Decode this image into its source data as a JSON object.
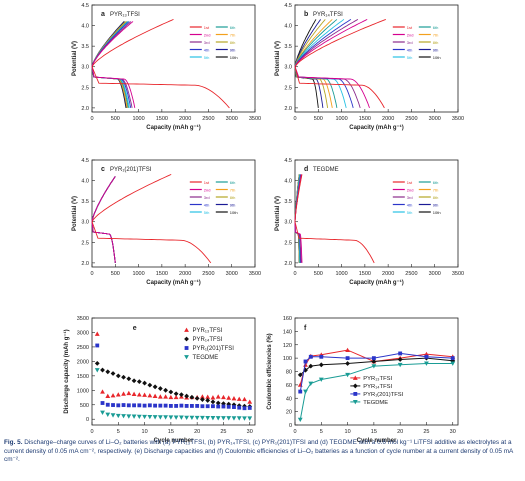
{
  "colors": {
    "red": "#e8262b",
    "darkred": "#c41e1e",
    "magenta": "#d5008f",
    "purple": "#8c2b8c",
    "blue": "#2b35c9",
    "cyan": "#28c2e4",
    "teal": "#1a9c95",
    "orange": "#f3a01d",
    "olive": "#b5a626",
    "black": "#111111",
    "navy": "#1b1b96",
    "darkblue": "#22229e"
  },
  "caption": {
    "prefix": "Fig. 5.",
    "text": "Discharge–charge curves of Li–O₂ batteries with (a) PYR₁₃TFSI, (b) PYR₁₄TFSI, (c) PYR₁(201)TFSI and (d) TEGDME with a 0.6 mol kg⁻¹ LiTFSI additive as electrolytes at a current density of 0.05 mA cm⁻², respectively. (e) Discharge capacities and (f) Coulombic efficiencies of Li–O₂ batteries as a function of cycle number at a current density of 0.05 mA cm⁻²."
  },
  "chart_data": [
    {
      "panel": "a",
      "type": "line",
      "label": "PYR₁₃TFSI",
      "xlabel": "Capacity (mAh g⁻¹)",
      "ylabel": "Potential (V)",
      "xlim": [
        0,
        3500
      ],
      "ylim": [
        1.9,
        4.5
      ],
      "xticks": [
        0,
        500,
        1000,
        1500,
        2000,
        2500,
        3000,
        3500
      ],
      "yticks": [
        2.0,
        2.5,
        3.0,
        3.5,
        4.0,
        4.5
      ],
      "legend": [
        "1st",
        "2nd",
        "3rd",
        "4th",
        "5th",
        "6th",
        "7th",
        "8th",
        "9th",
        "10th"
      ],
      "discharge_end": [
        2950,
        920,
        860,
        830,
        800,
        780,
        760,
        750,
        740,
        730
      ],
      "charge_end": [
        1750,
        880,
        840,
        800,
        780,
        760,
        740,
        720,
        700,
        690
      ],
      "charge_max": [
        4.15,
        4.1,
        4.1,
        4.1,
        4.1,
        4.1,
        4.1,
        4.1,
        4.1,
        4.1
      ]
    },
    {
      "panel": "b",
      "type": "line",
      "label": "PYR₁₄TFSI",
      "xlabel": "Capacity (mAh g⁻¹)",
      "ylabel": "Potential (V)",
      "xlim": [
        0,
        3500
      ],
      "ylim": [
        1.9,
        4.5
      ],
      "xticks": [
        0,
        500,
        1000,
        1500,
        2000,
        2500,
        3000,
        3500
      ],
      "yticks": [
        2.0,
        2.5,
        3.0,
        3.5,
        4.0,
        4.5
      ],
      "legend": [
        "1st",
        "2nd",
        "3rd",
        "4th",
        "5th",
        "6th",
        "7th",
        "8th",
        "9th",
        "10th"
      ],
      "discharge_end": [
        1920,
        1600,
        1400,
        1250,
        1100,
        900,
        800,
        700,
        600,
        500
      ],
      "charge_end": [
        1950,
        1550,
        1350,
        1200,
        1050,
        900,
        800,
        650,
        550,
        450
      ],
      "charge_max": [
        4.15,
        4.15,
        4.15,
        4.15,
        4.15,
        4.15,
        4.15,
        4.15,
        4.15,
        4.15
      ]
    },
    {
      "panel": "c",
      "type": "line",
      "label": "PYR₁(201)TFSI",
      "xlabel": "Capacity (mAh g⁻¹)",
      "ylabel": "Potential (V)",
      "xlim": [
        0,
        3500
      ],
      "ylim": [
        1.9,
        4.5
      ],
      "xticks": [
        0,
        500,
        1000,
        1500,
        2000,
        2500,
        3000,
        3500
      ],
      "yticks": [
        2.0,
        2.5,
        3.0,
        3.5,
        4.0,
        4.5
      ],
      "legend": [
        "1st",
        "2nd",
        "3rd",
        "4th",
        "5th",
        "6th",
        "7th",
        "8th",
        "9th",
        "10th"
      ],
      "discharge_end": [
        2550,
        500,
        500,
        500,
        500,
        500,
        500,
        500,
        500,
        500
      ],
      "charge_end": [
        1700,
        500,
        500,
        500,
        500,
        500,
        500,
        500,
        500,
        500
      ],
      "charge_max": [
        4.15,
        4.1,
        4.1,
        4.1,
        4.1,
        4.1,
        4.1,
        4.1,
        4.1,
        4.1
      ]
    },
    {
      "panel": "d",
      "type": "line",
      "label": "TEGDME",
      "xlabel": "Capacity (mAh g⁻¹)",
      "ylabel": "Potential (V)",
      "xlim": [
        0,
        3500
      ],
      "ylim": [
        1.9,
        4.5
      ],
      "xticks": [
        0,
        500,
        1000,
        1500,
        2000,
        2500,
        3000,
        3500
      ],
      "yticks": [
        2.0,
        2.5,
        3.0,
        3.5,
        4.0,
        4.5
      ],
      "legend": [
        "1st",
        "2nd",
        "3rd",
        "4th",
        "5th",
        "6th",
        "7th",
        "8th",
        "9th",
        "10th"
      ],
      "discharge_end": [
        1700,
        150,
        130,
        120,
        110,
        100,
        100,
        90,
        90,
        90
      ],
      "charge_end": [
        150,
        140,
        130,
        120,
        110,
        100,
        100,
        90,
        90,
        90
      ],
      "charge_max": [
        4.15,
        4.15,
        4.15,
        4.15,
        4.15,
        4.15,
        4.15,
        4.15,
        4.15,
        4.15
      ]
    },
    {
      "panel": "e",
      "type": "scatter",
      "xlabel": "Cycle number",
      "ylabel": "Discharge capacity (mAh g⁻¹)",
      "xlim": [
        0,
        31
      ],
      "ylim": [
        -200,
        3500
      ],
      "xticks": [
        0,
        5,
        10,
        15,
        20,
        25,
        30
      ],
      "yticks": [
        0,
        500,
        1000,
        1500,
        2000,
        2500,
        3000,
        3500
      ],
      "legend_position": "top-right",
      "series": [
        {
          "name": "PYR₁₃TFSI",
          "color": "#e8262b",
          "marker": "triangle",
          "values": [
            2950,
            950,
            800,
            820,
            850,
            880,
            900,
            870,
            850,
            840,
            820,
            800,
            780,
            780,
            760,
            760,
            780,
            750,
            760,
            760,
            780,
            770,
            750,
            780,
            760,
            740,
            720,
            700,
            690,
            600
          ]
        },
        {
          "name": "PYR₁₄TFSI",
          "color": "#111111",
          "marker": "diamond",
          "values": [
            1930,
            1700,
            1640,
            1580,
            1500,
            1450,
            1400,
            1330,
            1300,
            1250,
            1180,
            1120,
            1060,
            1000,
            940,
            880,
            850,
            800,
            760,
            720,
            680,
            650,
            600,
            560,
            540,
            520,
            500,
            470,
            450,
            440
          ]
        },
        {
          "name": "PYR₁(201)TFSI",
          "color": "#2b35c9",
          "marker": "square",
          "values": [
            2550,
            560,
            500,
            490,
            480,
            490,
            480,
            480,
            480,
            470,
            480,
            470,
            470,
            470,
            460,
            460,
            470,
            460,
            460,
            460,
            450,
            450,
            450,
            440,
            440,
            430,
            420,
            400,
            380,
            390
          ]
        },
        {
          "name": "TEGDME",
          "color": "#1a9c95",
          "marker": "triangle-down",
          "values": [
            1700,
            230,
            160,
            140,
            120,
            110,
            100,
            95,
            90,
            85,
            80,
            75,
            70,
            70,
            65,
            60,
            60,
            55,
            55,
            50,
            50,
            45,
            45,
            40,
            40,
            40,
            35,
            35,
            30,
            30
          ]
        }
      ]
    },
    {
      "panel": "f",
      "type": "line",
      "xlabel": "Cycle number",
      "ylabel": "Coulombic efficiencies (%)",
      "xlim": [
        0,
        31
      ],
      "ylim": [
        0,
        160
      ],
      "xticks": [
        0,
        5,
        10,
        15,
        20,
        25,
        30
      ],
      "yticks": [
        0,
        20,
        40,
        60,
        80,
        100,
        120,
        140,
        160
      ],
      "legend_position": "bottom-right",
      "series": [
        {
          "name": "PYR₁₃TFSI",
          "color": "#e8262b",
          "marker": "triangle",
          "x": [
            1,
            2,
            3,
            5,
            10,
            15,
            20,
            25,
            30
          ],
          "values": [
            60,
            90,
            103,
            105,
            112,
            95,
            100,
            106,
            102
          ]
        },
        {
          "name": "PYR₁₄TFSI",
          "color": "#111111",
          "marker": "diamond",
          "x": [
            1,
            2,
            3,
            5,
            10,
            15,
            20,
            25,
            30
          ],
          "values": [
            75,
            82,
            88,
            90,
            92,
            95,
            98,
            100,
            96
          ]
        },
        {
          "name": "PYR₁(201)TFSI",
          "color": "#2b35c9",
          "marker": "square",
          "x": [
            1,
            2,
            3,
            5,
            10,
            15,
            20,
            25,
            30
          ],
          "values": [
            50,
            95,
            102,
            102,
            100,
            100,
            107,
            102,
            100
          ]
        },
        {
          "name": "TEGDME",
          "color": "#1a9c95",
          "marker": "triangle-down",
          "x": [
            1,
            2,
            3,
            5,
            10,
            15,
            20,
            25,
            30
          ],
          "values": [
            8,
            50,
            62,
            68,
            75,
            88,
            90,
            92,
            92
          ]
        }
      ]
    }
  ]
}
